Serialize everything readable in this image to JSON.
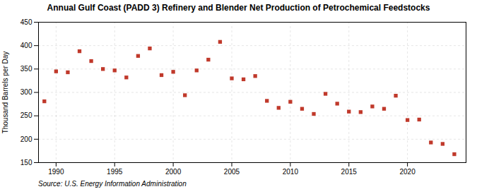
{
  "chart_data": {
    "type": "scatter",
    "title": "Annual Gulf Coast (PADD 3) Refinery and Blender Net Production of Petrochemical Feedstocks",
    "ylabel": "Thousand Barrels per Day",
    "source": "Source: U.S. Energy Information Administration",
    "x": [
      1989,
      1990,
      1991,
      1992,
      1993,
      1994,
      1995,
      1996,
      1997,
      1998,
      1999,
      2000,
      2001,
      2002,
      2003,
      2004,
      2005,
      2006,
      2007,
      2008,
      2009,
      2010,
      2011,
      2012,
      2013,
      2014,
      2015,
      2016,
      2017,
      2018,
      2019,
      2020,
      2021,
      2022,
      2023,
      2024
    ],
    "values": [
      281,
      345,
      343,
      388,
      367,
      350,
      347,
      332,
      378,
      394,
      337,
      344,
      294,
      347,
      370,
      408,
      330,
      328,
      335,
      282,
      267,
      280,
      265,
      254,
      297,
      276,
      259,
      258,
      270,
      265,
      293,
      241,
      242,
      193,
      190,
      168
    ],
    "color": "#c0392b",
    "marker": "square",
    "xlim": [
      1988.5,
      2025
    ],
    "ylim": [
      150,
      450
    ],
    "xticks": [
      1990,
      1995,
      2000,
      2005,
      2010,
      2015,
      2020
    ],
    "yticks": [
      150,
      200,
      250,
      300,
      350,
      400,
      450
    ],
    "grid": true
  }
}
